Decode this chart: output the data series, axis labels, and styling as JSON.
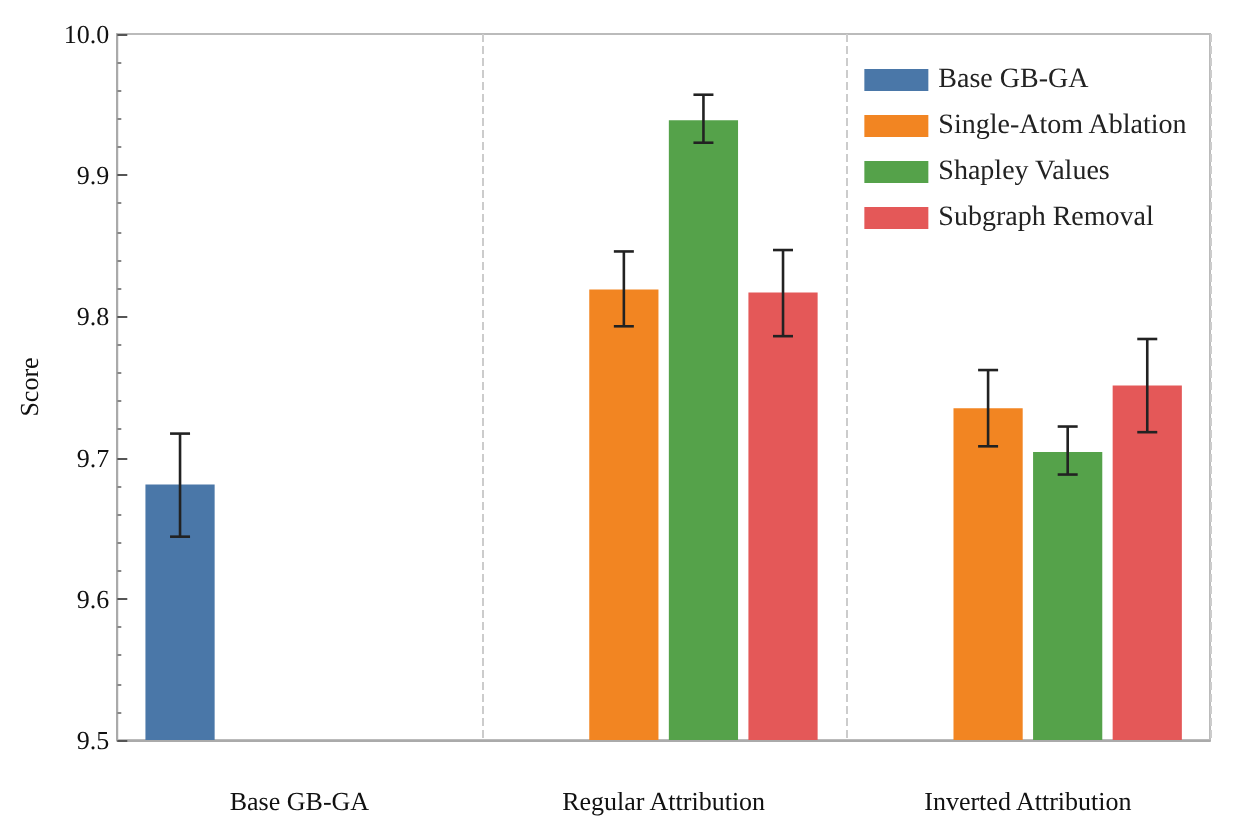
{
  "chart_data": {
    "type": "bar",
    "ylabel": "Score",
    "categories": [
      "Base GB-GA",
      "Regular Attribution",
      "Inverted Attribution"
    ],
    "series": [
      {
        "name": "Base GB-GA",
        "color": "#4a77a8",
        "values": [
          9.681,
          null,
          null
        ],
        "errors": [
          [
            9.644,
            9.717
          ],
          null,
          null
        ]
      },
      {
        "name": "Single-Atom Ablation",
        "color": "#f28522",
        "values": [
          null,
          9.819,
          9.735
        ],
        "errors": [
          null,
          [
            9.793,
            9.846
          ],
          [
            9.708,
            9.762
          ]
        ]
      },
      {
        "name": "Shapley Values",
        "color": "#55a24a",
        "values": [
          null,
          9.939,
          9.704
        ],
        "errors": [
          null,
          [
            9.923,
            9.957
          ],
          [
            9.688,
            9.722
          ]
        ]
      },
      {
        "name": "Subgraph Removal",
        "color": "#e45858",
        "values": [
          null,
          9.817,
          9.751
        ],
        "errors": [
          null,
          [
            9.786,
            9.847
          ],
          [
            9.718,
            9.784
          ]
        ]
      }
    ],
    "ylim": [
      9.5,
      10.0
    ],
    "yticks": [
      9.5,
      9.6,
      9.7,
      9.8,
      9.9,
      {
        "value": 10,
        "label": "10.0"
      }
    ],
    "grid": "x",
    "legend": "top right"
  }
}
